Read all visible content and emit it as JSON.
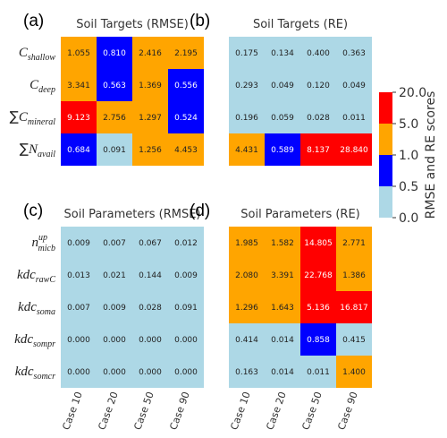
{
  "chart_data": {
    "type": "heatmap",
    "colorbar": {
      "label": "RMSE and RE scores",
      "ticks": [
        "20.0",
        "5.0",
        "1.0",
        "0.5",
        "0.0"
      ],
      "bins": [
        {
          "range": [
            0.0,
            0.5
          ],
          "color": "#add8e6"
        },
        {
          "range": [
            0.5,
            1.0
          ],
          "color": "#0000ff"
        },
        {
          "range": [
            1.0,
            5.0
          ],
          "color": "#ffa500"
        },
        {
          "range": [
            5.0,
            20.0
          ],
          "color": "#ff0000"
        }
      ]
    },
    "columns": [
      "Case 10",
      "Case 20",
      "Case 50",
      "Case 90"
    ],
    "panels": [
      {
        "letter": "(a)",
        "title": "Soil Targets (RMSE)",
        "rows": [
          {
            "label": {
              "prefix": "",
              "base": "C",
              "sub": "shallow",
              "sup": ""
            },
            "values": [
              "1.055",
              "0.810",
              "2.416",
              "2.195"
            ]
          },
          {
            "label": {
              "prefix": "",
              "base": "C",
              "sub": "deep",
              "sup": ""
            },
            "values": [
              "3.341",
              "0.563",
              "1.369",
              "0.556"
            ]
          },
          {
            "label": {
              "prefix": "∑",
              "base": "C",
              "sub": "mineral",
              "sup": ""
            },
            "values": [
              "9.123",
              "2.756",
              "1.297",
              "0.524"
            ]
          },
          {
            "label": {
              "prefix": "∑",
              "base": "N",
              "sub": "avail",
              "sup": ""
            },
            "values": [
              "0.684",
              "0.091",
              "1.256",
              "4.453"
            ]
          }
        ]
      },
      {
        "letter": "(b)",
        "title": "Soil Targets (RE)",
        "rows": [
          {
            "values": [
              "0.175",
              "0.134",
              "0.400",
              "0.363"
            ]
          },
          {
            "values": [
              "0.293",
              "0.049",
              "0.120",
              "0.049"
            ]
          },
          {
            "values": [
              "0.196",
              "0.059",
              "0.028",
              "0.011"
            ]
          },
          {
            "values": [
              "4.431",
              "0.589",
              "8.137",
              "28.840"
            ]
          }
        ]
      },
      {
        "letter": "(c)",
        "title": "Soil Parameters (RMSE)",
        "rows": [
          {
            "label": {
              "prefix": "",
              "base": "n",
              "sub": "micb",
              "sup": "up"
            },
            "values": [
              "0.009",
              "0.007",
              "0.067",
              "0.012"
            ]
          },
          {
            "label": {
              "prefix": "",
              "base": "kdc",
              "sub": "rawC",
              "sup": ""
            },
            "values": [
              "0.013",
              "0.021",
              "0.144",
              "0.009"
            ]
          },
          {
            "label": {
              "prefix": "",
              "base": "kdc",
              "sub": "soma",
              "sup": ""
            },
            "values": [
              "0.007",
              "0.009",
              "0.028",
              "0.091"
            ]
          },
          {
            "label": {
              "prefix": "",
              "base": "kdc",
              "sub": "sompr",
              "sup": ""
            },
            "values": [
              "0.000",
              "0.000",
              "0.000",
              "0.000"
            ]
          },
          {
            "label": {
              "prefix": "",
              "base": "kdc",
              "sub": "somcr",
              "sup": ""
            },
            "values": [
              "0.000",
              "0.000",
              "0.000",
              "0.000"
            ]
          }
        ]
      },
      {
        "letter": "(d)",
        "title": "Soil Parameters (RE)",
        "rows": [
          {
            "values": [
              "1.985",
              "1.582",
              "14.805",
              "2.771"
            ]
          },
          {
            "values": [
              "2.080",
              "3.391",
              "22.768",
              "1.386"
            ]
          },
          {
            "values": [
              "1.296",
              "1.643",
              "5.136",
              "16.817"
            ]
          },
          {
            "values": [
              "0.414",
              "0.014",
              "0.858",
              "0.415"
            ]
          },
          {
            "values": [
              "0.163",
              "0.014",
              "0.011",
              "1.400"
            ]
          }
        ]
      }
    ]
  }
}
